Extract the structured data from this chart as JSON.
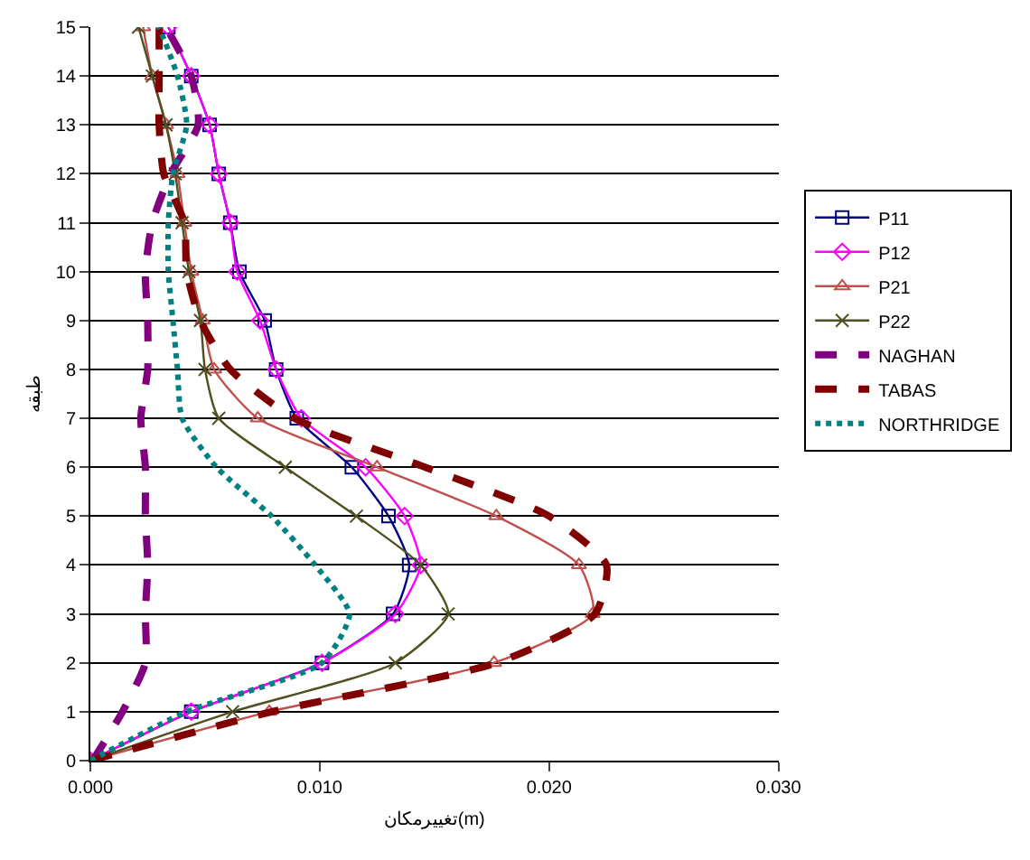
{
  "chart_data": {
    "type": "line",
    "xlabel": "تغییرمکان(m)",
    "ylabel": "طبقه",
    "series": [
      {
        "name": "P11",
        "color": "#000080",
        "marker": "square",
        "line_style": "solid",
        "values": [
          0,
          1,
          2,
          3,
          4,
          5,
          6,
          7,
          8,
          9,
          10,
          11,
          12,
          13,
          14,
          15
        ],
        "x": [
          0,
          0.0044,
          0.0101,
          0.0132,
          0.0139,
          0.013,
          0.0114,
          0.009,
          0.0081,
          0.0076,
          0.0065,
          0.0061,
          0.0056,
          0.0052,
          0.0044,
          0.0034
        ]
      },
      {
        "name": "P12",
        "color": "#ff00ff",
        "marker": "diamond",
        "line_style": "solid",
        "values": [
          0,
          1,
          2,
          3,
          4,
          5,
          6,
          7,
          8,
          9,
          10,
          11,
          12,
          13,
          14,
          15
        ],
        "x": [
          0,
          0.0044,
          0.0101,
          0.0133,
          0.0144,
          0.0137,
          0.012,
          0.0092,
          0.0081,
          0.0074,
          0.0064,
          0.0061,
          0.0056,
          0.0052,
          0.0044,
          0.0034
        ]
      },
      {
        "name": "P21",
        "color": "#c0504d",
        "marker": "triangle",
        "line_style": "solid",
        "values": [
          0,
          1,
          2,
          3,
          4,
          5,
          6,
          7,
          8,
          9,
          10,
          11,
          12,
          13,
          14,
          15
        ],
        "x": [
          0,
          0.0078,
          0.0176,
          0.0219,
          0.0213,
          0.0177,
          0.0125,
          0.0073,
          0.0054,
          0.0049,
          0.0044,
          0.0041,
          0.0038,
          0.0033,
          0.0027,
          0.0023
        ]
      },
      {
        "name": "P22",
        "color": "#4f4f1f",
        "marker": "cross",
        "line_style": "solid",
        "values": [
          0,
          1,
          2,
          3,
          4,
          5,
          6,
          7,
          8,
          9,
          10,
          11,
          12,
          13,
          14,
          15
        ],
        "x": [
          0,
          0.0062,
          0.0133,
          0.0156,
          0.0144,
          0.0116,
          0.0085,
          0.0056,
          0.005,
          0.0048,
          0.0043,
          0.004,
          0.0037,
          0.0033,
          0.0027,
          0.0021
        ]
      },
      {
        "name": "NAGHAN",
        "color": "#800080",
        "marker": "none",
        "line_style": "dashed",
        "values": [
          0,
          1,
          2,
          3,
          4,
          5,
          6,
          7,
          8,
          9,
          10,
          11,
          12,
          13,
          14,
          15
        ],
        "x": [
          0.0001,
          0.0014,
          0.0024,
          0.0024,
          0.0025,
          0.0024,
          0.0024,
          0.0022,
          0.0025,
          0.0025,
          0.0024,
          0.0027,
          0.0035,
          0.0047,
          0.0044,
          0.0033
        ]
      },
      {
        "name": "TABAS",
        "color": "#800000",
        "marker": "none",
        "line_style": "dashed",
        "values": [
          0,
          1,
          2,
          3,
          4,
          5,
          6,
          7,
          8,
          9,
          10,
          11,
          12,
          13,
          14,
          15
        ],
        "x": [
          0,
          0.0079,
          0.0177,
          0.022,
          0.0225,
          0.02,
          0.0146,
          0.0089,
          0.0061,
          0.0048,
          0.0042,
          0.0041,
          0.0032,
          0.003,
          0.003,
          0.003
        ]
      },
      {
        "name": "NORTHRIDGE",
        "color": "#008080",
        "marker": "none",
        "line_style": "dotted",
        "values": [
          0,
          1,
          2,
          3,
          4,
          5,
          6,
          7,
          8,
          9,
          10,
          11,
          12,
          13,
          14,
          15
        ],
        "x": [
          0,
          0.0042,
          0.0101,
          0.0113,
          0.0098,
          0.0079,
          0.0055,
          0.004,
          0.0038,
          0.0036,
          0.0034,
          0.0034,
          0.0036,
          0.0042,
          0.0038,
          0.003
        ]
      }
    ],
    "xlim": [
      0,
      0.03
    ],
    "xticks": [
      {
        "value": 0,
        "label": "0.000"
      },
      {
        "value": 0.01,
        "label": "0.010"
      },
      {
        "value": 0.02,
        "label": "0.020"
      },
      {
        "value": 0.03,
        "label": "0.030"
      }
    ],
    "ylim": [
      0,
      15
    ],
    "yticks": [
      0,
      1,
      2,
      3,
      4,
      5,
      6,
      7,
      8,
      9,
      10,
      11,
      12,
      13,
      14,
      15
    ],
    "grid": "y",
    "legend": "right"
  }
}
